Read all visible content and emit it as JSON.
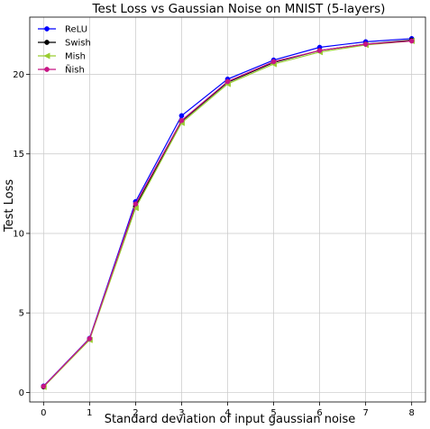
{
  "chart_data": {
    "type": "line",
    "title": "Test Loss vs Gaussian Noise on MNIST (5-layers)",
    "xlabel": "Standard deviation of input gaussian noise",
    "ylabel": "Test Loss",
    "x": [
      0,
      1,
      2,
      3,
      4,
      5,
      6,
      7,
      8
    ],
    "xlim": [
      -0.3,
      8.3
    ],
    "ylim": [
      -0.6,
      23.6
    ],
    "xticks": [
      "0",
      "1",
      "2",
      "3",
      "4",
      "5",
      "6",
      "7",
      "8"
    ],
    "yticks": [
      "0",
      "5",
      "10",
      "15",
      "20"
    ],
    "grid": true,
    "legend_position": "top-left",
    "series": [
      {
        "name": "ReLU",
        "color": "#0000ff",
        "marker": "circle",
        "values": [
          0.4,
          3.4,
          12.0,
          17.4,
          19.7,
          20.9,
          21.7,
          22.05,
          22.25
        ]
      },
      {
        "name": "Swish",
        "color": "#000000",
        "marker": "circle",
        "values": [
          0.35,
          3.35,
          11.7,
          17.05,
          19.5,
          20.75,
          21.5,
          21.9,
          22.15
        ]
      },
      {
        "name": "Mish",
        "color": "#9acd32",
        "marker": "triangle",
        "values": [
          0.35,
          3.3,
          11.6,
          16.95,
          19.4,
          20.65,
          21.4,
          21.85,
          22.1
        ]
      },
      {
        "name": "Ñish",
        "color": "#c71585",
        "marker": "circle",
        "values": [
          0.38,
          3.38,
          11.85,
          17.1,
          19.55,
          20.8,
          21.5,
          21.9,
          22.1
        ]
      }
    ]
  }
}
